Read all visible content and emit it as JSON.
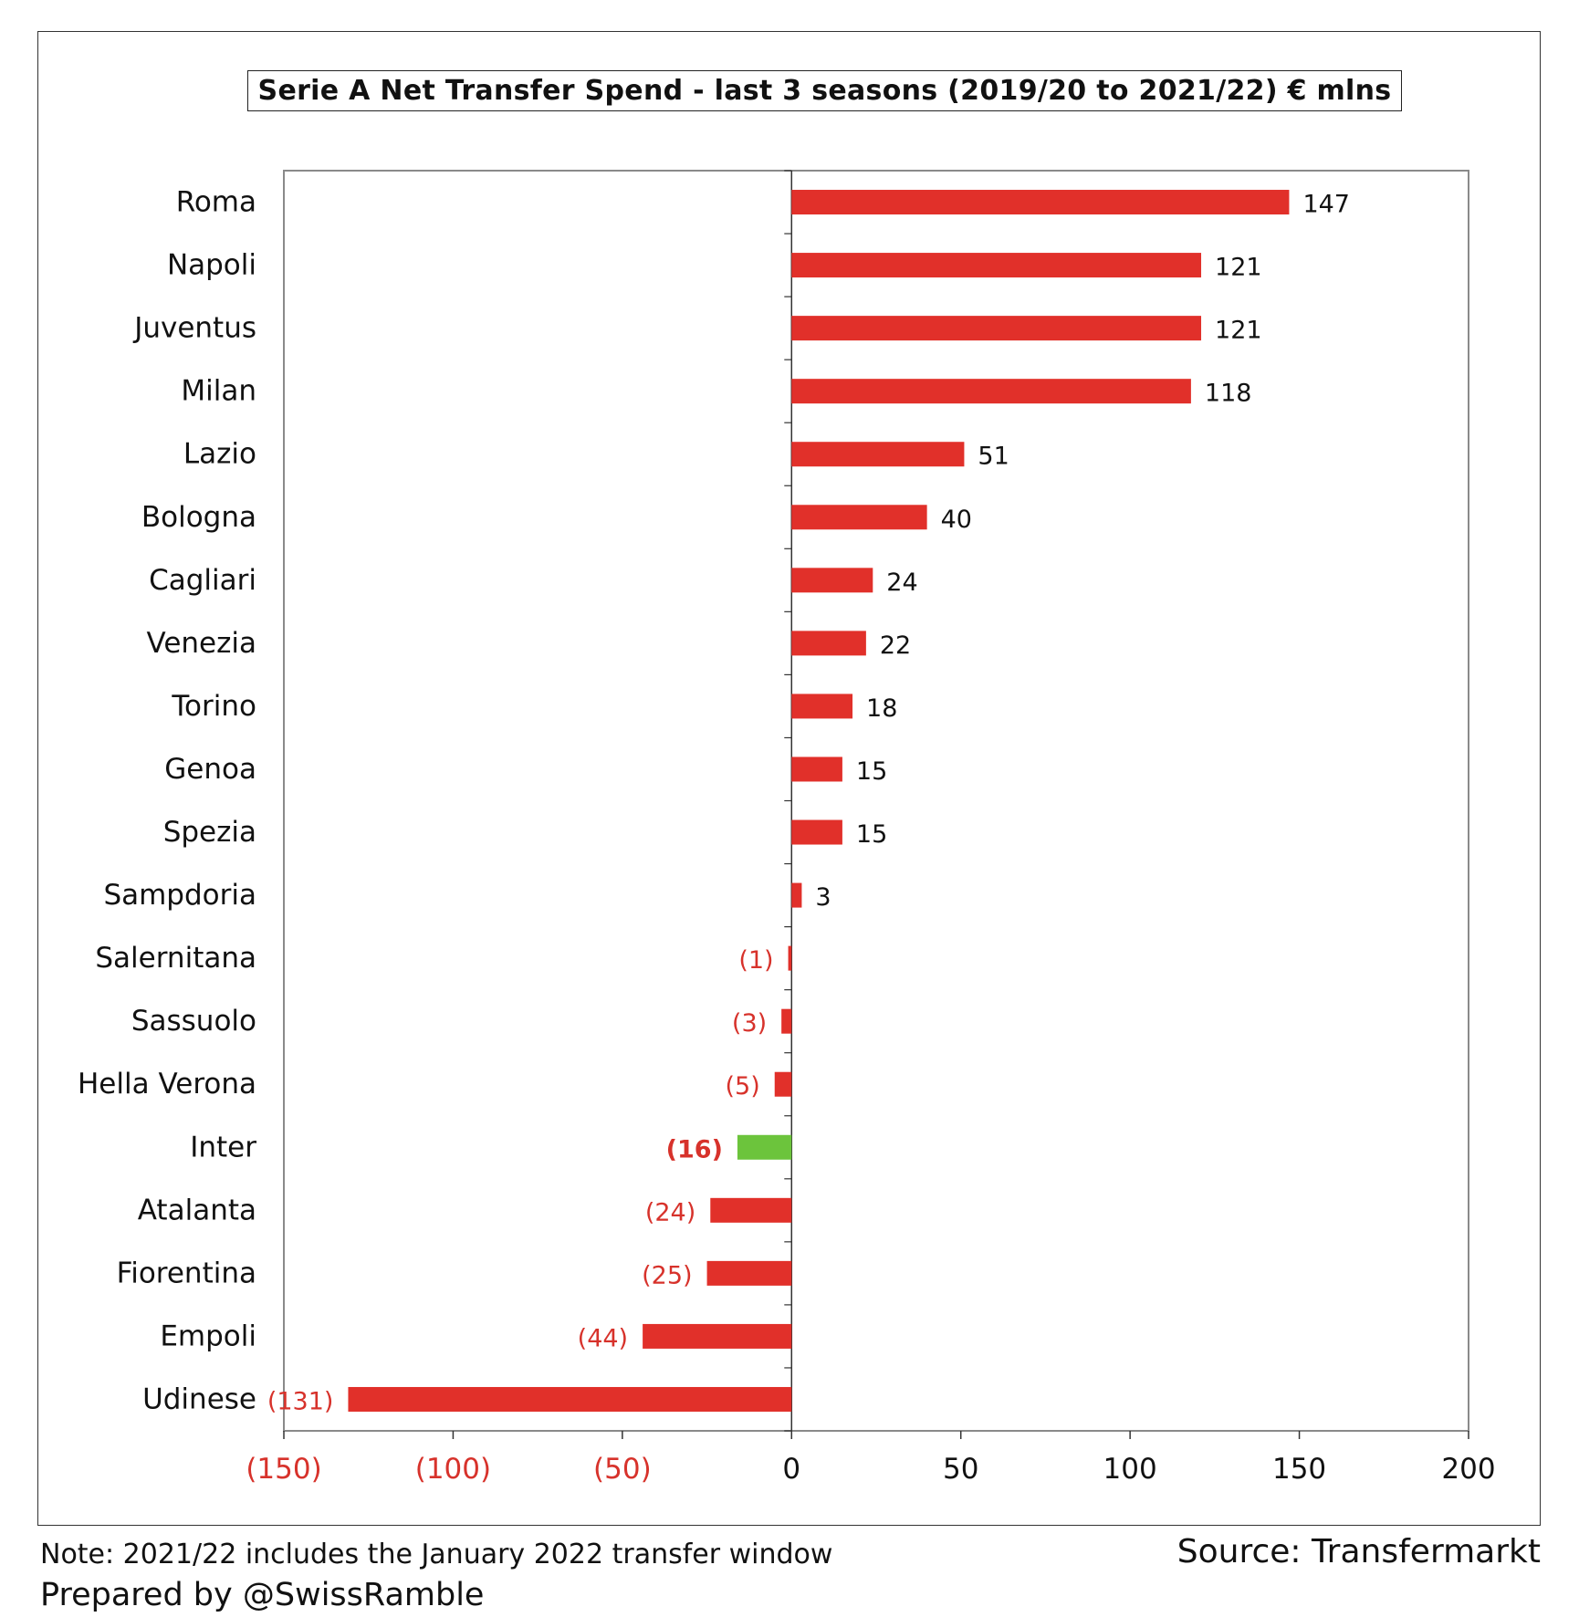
{
  "chart_data": {
    "type": "bar",
    "orientation": "horizontal",
    "title": "Serie A Net Transfer Spend - last 3 seasons (2019/20 to 2021/22) € mlns",
    "categories": [
      "Roma",
      "Napoli",
      "Juventus",
      "Milan",
      "Lazio",
      "Bologna",
      "Cagliari",
      "Venezia",
      "Torino",
      "Genoa",
      "Spezia",
      "Sampdoria",
      "Salernitana",
      "Sassuolo",
      "Hella Verona",
      "Inter",
      "Atalanta",
      "Fiorentina",
      "Empoli",
      "Udinese"
    ],
    "values": [
      147,
      121,
      121,
      118,
      51,
      40,
      24,
      22,
      18,
      15,
      15,
      3,
      -1,
      -3,
      -5,
      -16,
      -24,
      -25,
      -44,
      -131
    ],
    "data_labels": [
      "147",
      "121",
      "121",
      "118",
      "51",
      "40",
      "24",
      "22",
      "18",
      "15",
      "15",
      "3",
      "(1)",
      "(3)",
      "(5)",
      "(16)",
      "(24)",
      "(25)",
      "(44)",
      "(131)"
    ],
    "highlight": {
      "category": "Inter",
      "color": "#6cc43c"
    },
    "bar_color": "#e1302a",
    "negative_label_color": "#d7322b",
    "xlim": [
      -150,
      200
    ],
    "xticks": [
      -150,
      -100,
      -50,
      0,
      50,
      100,
      150,
      200
    ],
    "xtick_labels": [
      "(150)",
      "(100)",
      "(50)",
      "0",
      "50",
      "100",
      "150",
      "200"
    ],
    "grid": false,
    "legend": "none"
  },
  "footer": {
    "note": "Note: 2021/22 includes the January 2022 transfer window",
    "prepared": "Prepared by @SwissRamble",
    "source": "Source: Transfermarkt"
  }
}
